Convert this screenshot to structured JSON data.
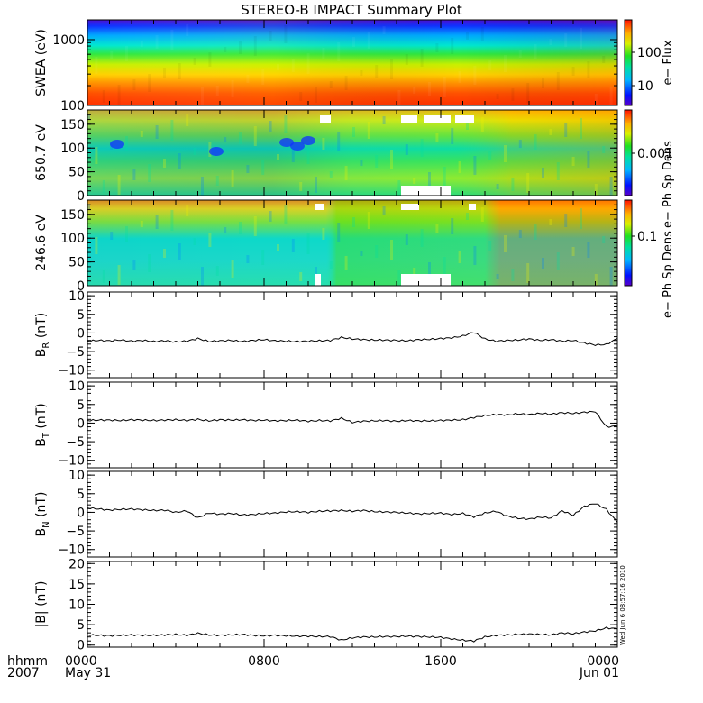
{
  "chart_data": {
    "title": "STEREO-B IMPACT Summary Plot",
    "type": "multi-panel",
    "x_axis": {
      "range_hours": [
        0,
        24
      ],
      "major_ticks": [
        0,
        8,
        16,
        24
      ],
      "tick_labels": [
        "0000",
        "0800",
        "1600",
        "0000"
      ],
      "date_labels": [
        "May 31",
        "",
        "",
        "Jun 01"
      ],
      "row_label_top": "hhmm",
      "row_label_bottom": "2007"
    },
    "side_stamp": "Wed Jun 6 08:57:16 2010",
    "panels": [
      {
        "id": "swea",
        "type": "heatmap",
        "ylabel": "SWEA (eV)",
        "yscale": "log",
        "ylim": [
          100,
          2000
        ],
        "yticks": [
          100,
          1000
        ],
        "ytick_labels": [
          "100",
          "1000"
        ],
        "colorbar": {
          "label": "e− Flux",
          "scale": "log",
          "ticks": [
            10,
            100
          ],
          "tick_labels": [
            "10",
            "100"
          ]
        }
      },
      {
        "id": "pad650",
        "type": "heatmap",
        "ylabel": "650.7 eV",
        "ylim": [
          0,
          180
        ],
        "yticks": [
          0,
          50,
          100,
          150
        ],
        "ytick_labels": [
          "0",
          "50",
          "100",
          "150"
        ],
        "colorbar": {
          "label": "e− Ph Sp Dens",
          "scale": "log",
          "ticks": [
            0.001
          ],
          "tick_labels": [
            "0.001"
          ]
        }
      },
      {
        "id": "pad246",
        "type": "heatmap",
        "ylabel": "246.6 eV",
        "ylim": [
          0,
          180
        ],
        "yticks": [
          0,
          50,
          100,
          150
        ],
        "ytick_labels": [
          "0",
          "50",
          "100",
          "150"
        ],
        "colorbar": {
          "label": "e− Ph Sp Dens",
          "scale": "log",
          "ticks": [
            0.1
          ],
          "tick_labels": [
            "0.1"
          ]
        }
      },
      {
        "id": "br",
        "type": "line",
        "ylabel_main": "B",
        "ylabel_sub": "R",
        "ylabel_unit": " (nT)",
        "ylim": [
          -12,
          11
        ],
        "yticks": [
          -10,
          -5,
          0,
          5,
          10
        ],
        "ytick_labels": [
          "−10",
          "−5",
          "0",
          "5",
          "10"
        ],
        "x": [
          0,
          0.5,
          1,
          1.5,
          2,
          2.5,
          3,
          3.5,
          4,
          4.5,
          5,
          5.5,
          6,
          6.5,
          7,
          7.5,
          8,
          8.5,
          9,
          9.5,
          10,
          10.5,
          11,
          11.5,
          12,
          12.5,
          13,
          13.5,
          14,
          14.5,
          15,
          15.5,
          16,
          16.5,
          17,
          17.5,
          18,
          18.5,
          19,
          19.5,
          20,
          20.5,
          21,
          21.5,
          22,
          22.5,
          23,
          23.5,
          24
        ],
        "y": [
          -2.2,
          -2.0,
          -2.1,
          -1.9,
          -2.2,
          -2.0,
          -2.3,
          -2.1,
          -2.4,
          -2.2,
          -1.5,
          -2.3,
          -2.1,
          -2.0,
          -2.3,
          -2.0,
          -1.8,
          -2.1,
          -2.2,
          -2.3,
          -2.2,
          -2.1,
          -2.0,
          -1.2,
          -1.6,
          -1.8,
          -1.9,
          -1.9,
          -2.0,
          -2.1,
          -1.8,
          -1.7,
          -1.5,
          -1.3,
          -0.8,
          0.2,
          -1.6,
          -2.2,
          -2.0,
          -1.9,
          -1.6,
          -2.0,
          -1.8,
          -2.2,
          -2.0,
          -2.7,
          -3.2,
          -3.1,
          -1.5
        ]
      },
      {
        "id": "bt",
        "type": "line",
        "ylabel_main": "B",
        "ylabel_sub": "T",
        "ylabel_unit": " (nT)",
        "ylim": [
          -12,
          11
        ],
        "yticks": [
          -10,
          -5,
          0,
          5,
          10
        ],
        "ytick_labels": [
          "−10",
          "−5",
          "0",
          "5",
          "10"
        ],
        "x": [
          0,
          0.5,
          1,
          1.5,
          2,
          2.5,
          3,
          3.5,
          4,
          4.5,
          5,
          5.5,
          6,
          6.5,
          7,
          7.5,
          8,
          8.5,
          9,
          9.5,
          10,
          10.5,
          11,
          11.5,
          12,
          12.5,
          13,
          13.5,
          14,
          14.5,
          15,
          15.5,
          16,
          16.5,
          17,
          17.5,
          18,
          18.5,
          19,
          19.5,
          20,
          20.5,
          21,
          21.5,
          22,
          22.5,
          23,
          23.5,
          24
        ],
        "y": [
          0.7,
          0.8,
          0.8,
          0.7,
          0.9,
          0.8,
          0.7,
          0.8,
          0.9,
          0.7,
          1.0,
          0.6,
          0.9,
          0.8,
          0.9,
          0.7,
          0.8,
          0.6,
          0.7,
          0.8,
          0.5,
          0.7,
          0.6,
          1.3,
          0.2,
          0.5,
          0.6,
          0.7,
          0.5,
          0.7,
          0.6,
          0.6,
          0.7,
          0.8,
          0.9,
          1.5,
          2.0,
          2.3,
          2.2,
          2.5,
          2.3,
          2.6,
          2.4,
          2.8,
          2.6,
          2.9,
          3.1,
          -1.0,
          -0.8
        ]
      },
      {
        "id": "bn",
        "type": "line",
        "ylabel_main": "B",
        "ylabel_sub": "N",
        "ylabel_unit": " (nT)",
        "ylim": [
          -12,
          11
        ],
        "yticks": [
          -10,
          -5,
          0,
          5,
          10
        ],
        "ytick_labels": [
          "−10",
          "−5",
          "0",
          "5",
          "10"
        ],
        "x": [
          0,
          0.5,
          1,
          1.5,
          2,
          2.5,
          3,
          3.5,
          4,
          4.5,
          5,
          5.5,
          6,
          6.5,
          7,
          7.5,
          8,
          8.5,
          9,
          9.5,
          10,
          10.5,
          11,
          11.5,
          12,
          12.5,
          13,
          13.5,
          14,
          14.5,
          15,
          15.5,
          16,
          16.5,
          17,
          17.5,
          18,
          18.5,
          19,
          19.5,
          20,
          20.5,
          21,
          21.5,
          22,
          22.5,
          23,
          23.5,
          24
        ],
        "y": [
          1.2,
          0.9,
          0.6,
          0.8,
          0.9,
          0.7,
          0.5,
          0.6,
          0.0,
          0.4,
          -1.5,
          -0.2,
          -0.5,
          -0.3,
          -0.7,
          -0.6,
          -0.3,
          -0.2,
          0.1,
          0.2,
          0.0,
          0.3,
          0.4,
          0.5,
          0.3,
          0.5,
          0.2,
          0.1,
          0.0,
          -0.2,
          -0.4,
          -0.3,
          -0.2,
          -0.6,
          -0.3,
          -1.2,
          -0.2,
          0.3,
          -1.0,
          -1.6,
          -1.8,
          -1.3,
          -1.5,
          0.4,
          -0.8,
          1.6,
          2.4,
          0.8,
          -2.7
        ]
      },
      {
        "id": "bmag",
        "type": "line",
        "ylabel_main": "|B| (nT)",
        "ylabel_sub": "",
        "ylabel_unit": "",
        "ylim": [
          -0.5,
          20.5
        ],
        "yticks": [
          0,
          5,
          10,
          15,
          20
        ],
        "ytick_labels": [
          "0",
          "5",
          "10",
          "15",
          "20"
        ],
        "x": [
          0,
          0.5,
          1,
          1.5,
          2,
          2.5,
          3,
          3.5,
          4,
          4.5,
          5,
          5.5,
          6,
          6.5,
          7,
          7.5,
          8,
          8.5,
          9,
          9.5,
          10,
          10.5,
          11,
          11.5,
          12,
          12.5,
          13,
          13.5,
          14,
          14.5,
          15,
          15.5,
          16,
          16.5,
          17,
          17.5,
          18,
          18.5,
          19,
          19.5,
          20,
          20.5,
          21,
          21.5,
          22,
          22.5,
          23,
          23.5,
          24
        ],
        "y": [
          2.5,
          2.4,
          2.3,
          2.4,
          2.5,
          2.4,
          2.4,
          2.5,
          2.6,
          2.4,
          2.9,
          2.5,
          2.4,
          2.5,
          2.6,
          2.4,
          2.3,
          2.4,
          2.3,
          2.2,
          2.2,
          2.1,
          2.1,
          1.2,
          1.8,
          2.0,
          2.0,
          2.1,
          2.1,
          2.2,
          2.1,
          2.0,
          1.9,
          1.5,
          1.2,
          1.0,
          2.0,
          2.4,
          2.5,
          2.6,
          2.7,
          2.6,
          2.5,
          3.0,
          2.8,
          3.2,
          3.5,
          4.2,
          4.0
        ]
      }
    ]
  }
}
